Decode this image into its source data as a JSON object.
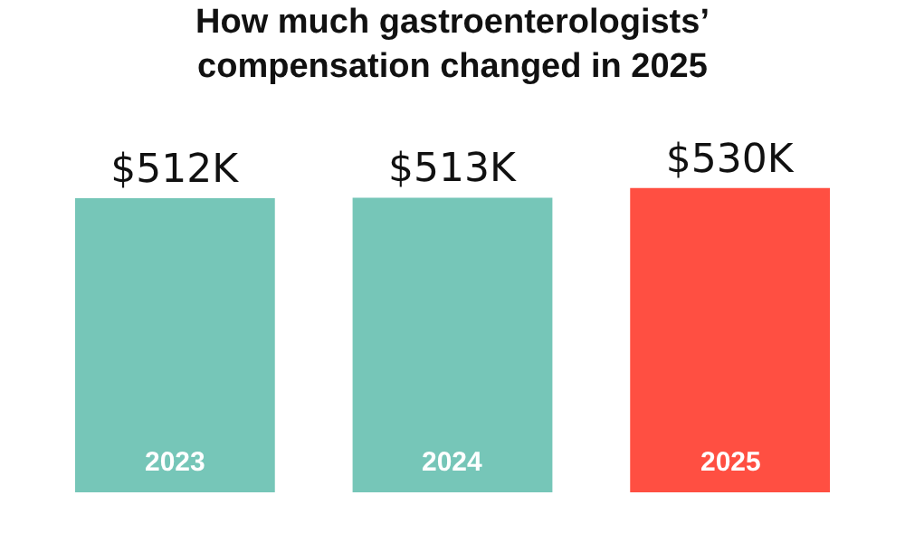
{
  "chart_data": {
    "type": "bar",
    "title": "How much gastroenterologists’ compensation changed in 2025",
    "categories": [
      "2023",
      "2024",
      "2025"
    ],
    "values": [
      512,
      513,
      530
    ],
    "colors": [
      "#76c6b8",
      "#76c6b8",
      "#ff4f42"
    ],
    "value_labels": [
      "$512K",
      "$513K",
      "$530K"
    ]
  }
}
